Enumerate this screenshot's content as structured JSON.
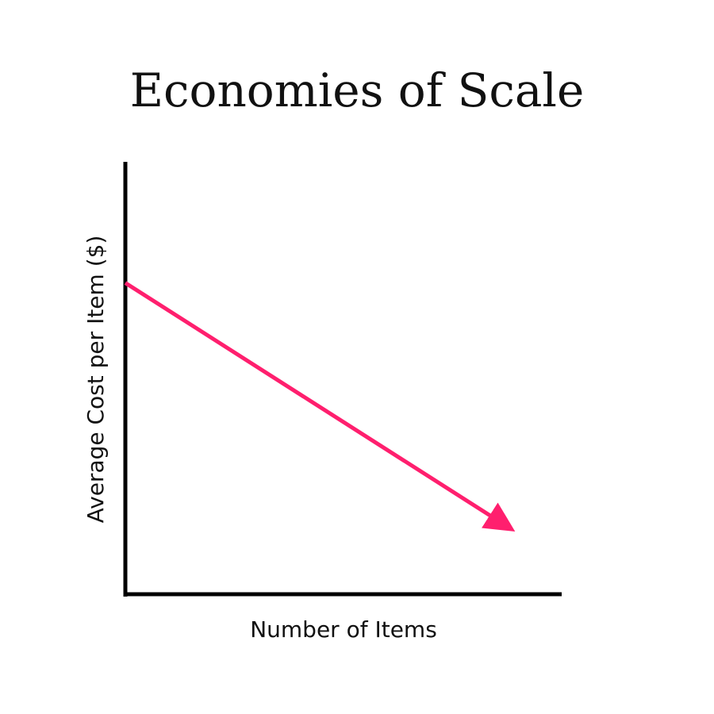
{
  "chart_data": {
    "type": "line",
    "title": "Economies of Scale",
    "xlabel": "Number of Items",
    "ylabel": "Average Cost per Item ($)",
    "grid": false,
    "series": [
      {
        "x": [
          0,
          0.87
        ],
        "y": [
          0.72,
          0.16
        ],
        "arrow_end": true
      }
    ],
    "xlim": [
      0,
      1
    ],
    "ylim": [
      0,
      1
    ],
    "tick_labels": false
  },
  "colors": {
    "line": "#ff1f6e",
    "axis": "#000000"
  }
}
